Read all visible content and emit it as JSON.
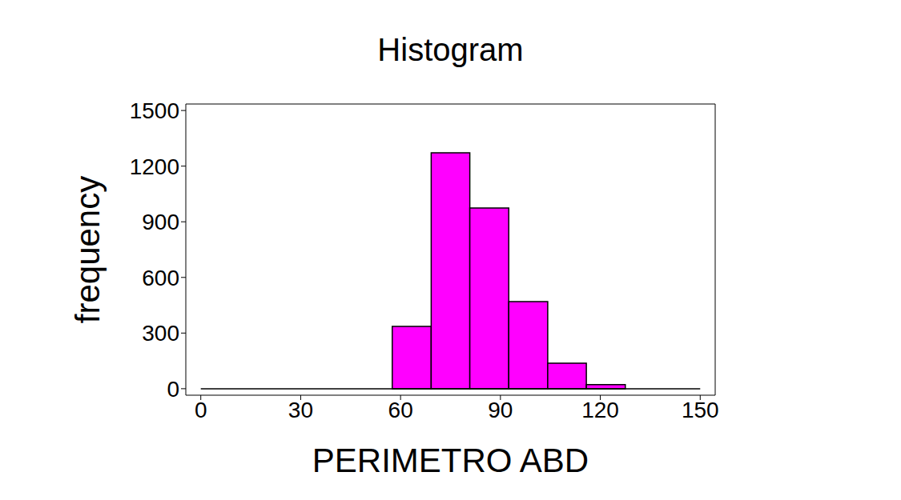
{
  "chart_data": {
    "type": "histogram",
    "title": "Histogram",
    "x_label": "PERIMETRO ABD",
    "y_label": "frequency",
    "bins": [
      57.5,
      69.2,
      80.8,
      92.5,
      104.2,
      115.8,
      127.5
    ],
    "counts": [
      336,
      1272,
      974,
      470,
      138,
      22
    ],
    "color": "#ff00ff",
    "xlim": [
      -4.5,
      154.5
    ],
    "ylim": [
      -35,
      1535
    ],
    "xticks": [
      0,
      30,
      60,
      90,
      120,
      150
    ],
    "yticks": [
      0,
      300,
      600,
      900,
      1200,
      1500
    ]
  }
}
